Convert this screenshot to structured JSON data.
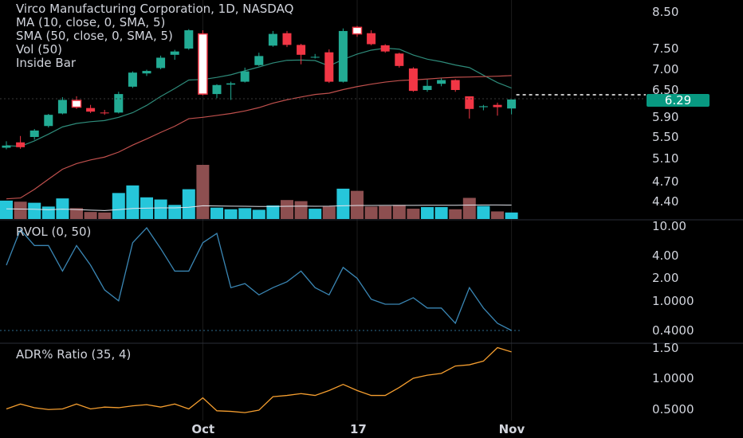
{
  "legend": {
    "title": "Virco Manufacturing Corporation, 1D, NASDAQ",
    "ma": "MA (10, close, 0, SMA, 5)",
    "sma": "SMA (50, close, 0, SMA, 5)",
    "vol": "Vol (50)",
    "inside": "Inside Bar"
  },
  "panes": {
    "rvol_title": "RVOL (0, 50)",
    "adr_title": "ADR% Ratio (35, 4)"
  },
  "colors": {
    "up": "#22ab94",
    "down": "#f23645",
    "vol_up": "#26c6da",
    "vol_down": "#8d4f50",
    "ma10": "#2e8b7a",
    "sma50": "#c0504d",
    "rvol": "#3a86b4",
    "adr": "#f59e2f",
    "price_badge": "#089981"
  },
  "chart_data": [
    {
      "type": "candlestick",
      "title": "Virco Manufacturing Corporation, 1D, NASDAQ",
      "y_ticks": [
        "8.50",
        "7.50",
        "7.00",
        "6.50",
        "5.90",
        "5.50",
        "5.10",
        "4.70",
        "4.40"
      ],
      "x_ticks": [
        "Oct",
        "17",
        "Nov"
      ],
      "last_price": "6.29",
      "ohlc": [
        [
          5.3,
          5.42,
          5.27,
          5.34
        ],
        [
          5.4,
          5.52,
          5.28,
          5.31
        ],
        [
          5.5,
          5.66,
          5.45,
          5.63
        ],
        [
          5.72,
          5.97,
          5.69,
          5.95
        ],
        [
          5.98,
          6.34,
          5.96,
          6.28
        ],
        [
          6.27,
          6.36,
          6.08,
          6.12
        ],
        [
          6.1,
          6.17,
          5.99,
          6.02
        ],
        [
          6.0,
          6.06,
          5.95,
          5.99
        ],
        [
          6.0,
          6.46,
          5.98,
          6.41
        ],
        [
          6.58,
          6.95,
          6.55,
          6.92
        ],
        [
          6.9,
          6.99,
          6.84,
          6.96
        ],
        [
          7.03,
          7.33,
          7.0,
          7.28
        ],
        [
          7.35,
          7.47,
          7.23,
          7.43
        ],
        [
          7.5,
          8.03,
          7.47,
          8.0
        ],
        [
          7.9,
          8.0,
          6.38,
          6.41
        ],
        [
          6.41,
          6.64,
          6.32,
          6.62
        ],
        [
          6.63,
          6.7,
          6.28,
          6.66
        ],
        [
          6.7,
          7.04,
          6.68,
          6.95
        ],
        [
          7.1,
          7.4,
          7.08,
          7.32
        ],
        [
          7.58,
          7.98,
          7.55,
          7.9
        ],
        [
          7.92,
          7.98,
          7.54,
          7.6
        ],
        [
          7.6,
          7.63,
          7.12,
          7.35
        ],
        [
          7.3,
          7.37,
          7.26,
          7.3
        ],
        [
          7.41,
          7.48,
          6.67,
          6.7
        ],
        [
          6.7,
          8.05,
          6.68,
          7.98
        ],
        [
          8.08,
          8.12,
          7.82,
          7.9
        ],
        [
          7.92,
          8.0,
          7.59,
          7.62
        ],
        [
          7.59,
          7.62,
          7.4,
          7.43
        ],
        [
          7.38,
          7.4,
          7.04,
          7.08
        ],
        [
          7.02,
          7.05,
          6.46,
          6.48
        ],
        [
          6.5,
          6.75,
          6.46,
          6.6
        ],
        [
          6.65,
          6.78,
          6.59,
          6.74
        ],
        [
          6.74,
          6.76,
          6.46,
          6.5
        ],
        [
          6.36,
          6.36,
          5.87,
          6.08
        ],
        [
          6.12,
          6.17,
          6.05,
          6.14
        ],
        [
          6.17,
          6.22,
          5.93,
          6.12
        ],
        [
          6.09,
          6.29,
          5.96,
          6.29
        ]
      ],
      "volume": [
        34,
        32,
        30,
        23,
        38,
        20,
        13,
        12,
        48,
        62,
        40,
        36,
        26,
        55,
        100,
        21,
        18,
        20,
        17,
        25,
        35,
        33,
        19,
        23,
        56,
        52,
        23,
        24,
        26,
        19,
        22,
        22,
        18,
        39,
        24,
        14,
        12
      ]
    },
    {
      "type": "line",
      "title": "RVOL (0, 50)",
      "y_ticks": [
        "10.00",
        "4.00",
        "2.00",
        "1.0000",
        "0.4000"
      ],
      "values": [
        3.0,
        9.0,
        5.5,
        5.5,
        2.5,
        5.5,
        3.0,
        1.4,
        1.0,
        6.0,
        9.5,
        5.0,
        2.5,
        2.5,
        6.0,
        8.0,
        1.5,
        1.7,
        1.2,
        1.5,
        1.8,
        2.5,
        1.5,
        1.2,
        2.8,
        2.0,
        1.05,
        0.9,
        0.9,
        1.1,
        0.8,
        0.8,
        0.5,
        1.5,
        0.8,
        0.5,
        0.4
      ]
    },
    {
      "type": "line",
      "title": "ADR% Ratio (35, 4)",
      "y_ticks": [
        "1.50",
        "1.0000",
        "0.5000"
      ],
      "values": [
        0.5,
        0.58,
        0.52,
        0.49,
        0.5,
        0.58,
        0.5,
        0.53,
        0.52,
        0.55,
        0.57,
        0.53,
        0.58,
        0.5,
        0.68,
        0.47,
        0.46,
        0.44,
        0.48,
        0.7,
        0.72,
        0.75,
        0.72,
        0.8,
        0.9,
        0.8,
        0.72,
        0.72,
        0.85,
        1.0,
        1.05,
        1.08,
        1.2,
        1.22,
        1.28,
        1.5,
        1.43
      ]
    }
  ]
}
